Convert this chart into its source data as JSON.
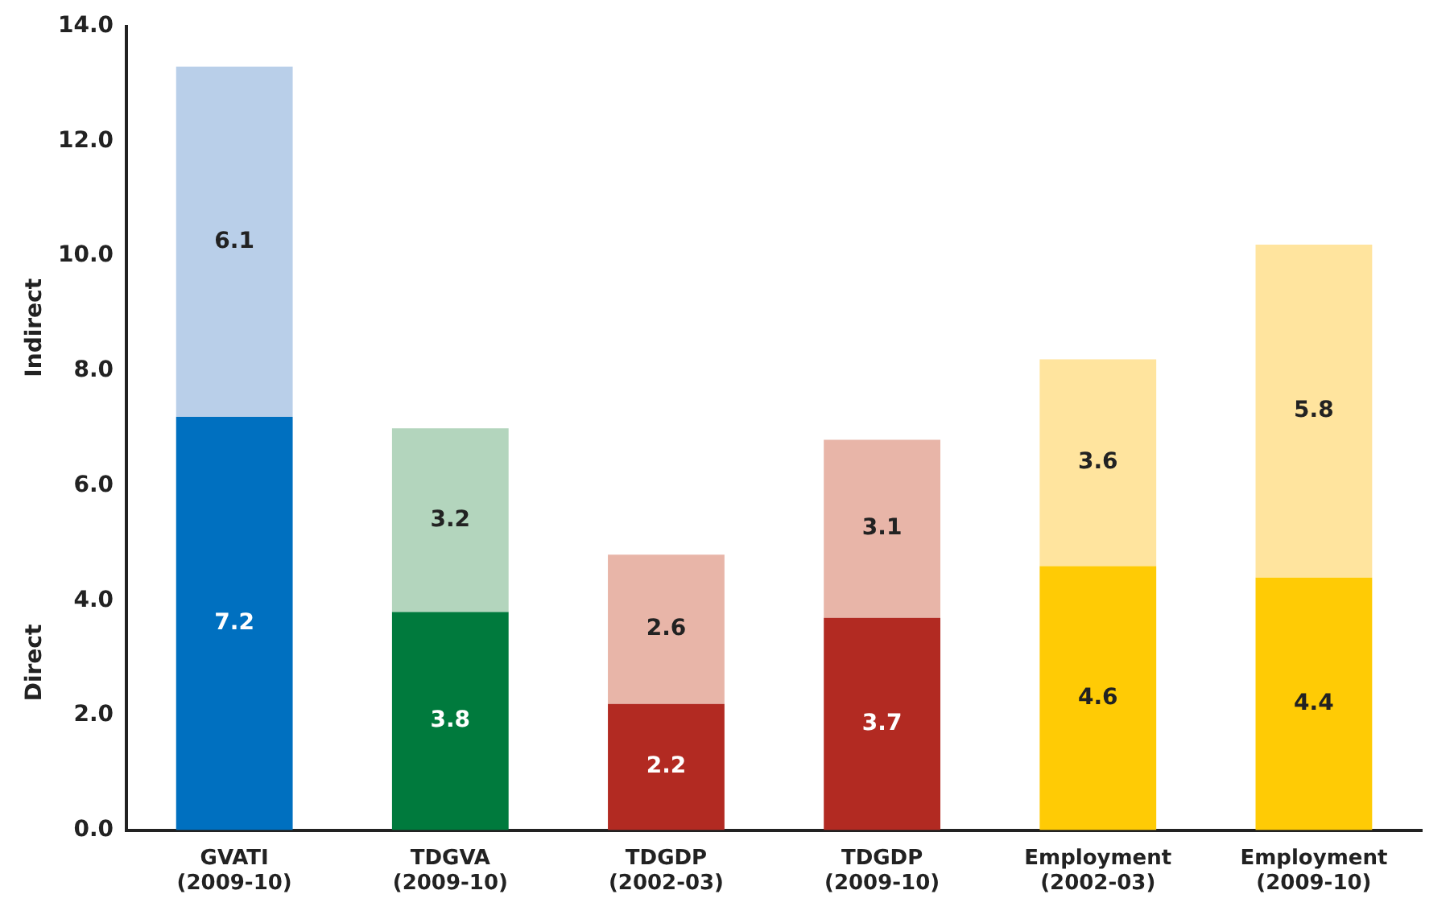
{
  "chart_data": {
    "type": "bar",
    "stacked": true,
    "categories": [
      "GVATI (2009-10)",
      "TDGVA (2009-10)",
      "TDGDP (2002-03)",
      "TDGDP (2009-10)",
      "Employment (2002-03)",
      "Employment (2009-10)"
    ],
    "series": [
      {
        "values": [
          7.2,
          3.8,
          2.2,
          3.7,
          4.6,
          4.4
        ],
        "colors": [
          "#0070c0",
          "#007a3d",
          "#b22a22",
          "#b22a22",
          "#ffcb05",
          "#ffcb05"
        ]
      },
      {
        "values": [
          6.1,
          3.2,
          2.6,
          3.1,
          3.6,
          5.8
        ],
        "colors": [
          "#b9cfe9",
          "#b3d5bd",
          "#e8b5a8",
          "#e8b5a8",
          "#ffe49e",
          "#ffe49e"
        ]
      }
    ],
    "ylim": [
      0,
      14
    ],
    "yticks": [
      {
        "value": 0,
        "label": "0.0"
      },
      {
        "value": 2,
        "label": "2.0"
      },
      {
        "value": 4,
        "label": "4.0"
      },
      {
        "value": 6,
        "label": "6.0"
      },
      {
        "value": 8,
        "label": "8.0"
      },
      {
        "value": 10,
        "label": "10.0"
      },
      {
        "value": 12,
        "label": "12.0"
      },
      {
        "value": 14,
        "label": "14.0"
      }
    ],
    "annotations": [
      "Direct",
      "Indirect"
    ],
    "grid": false,
    "legend": false,
    "data_labels": true
  }
}
